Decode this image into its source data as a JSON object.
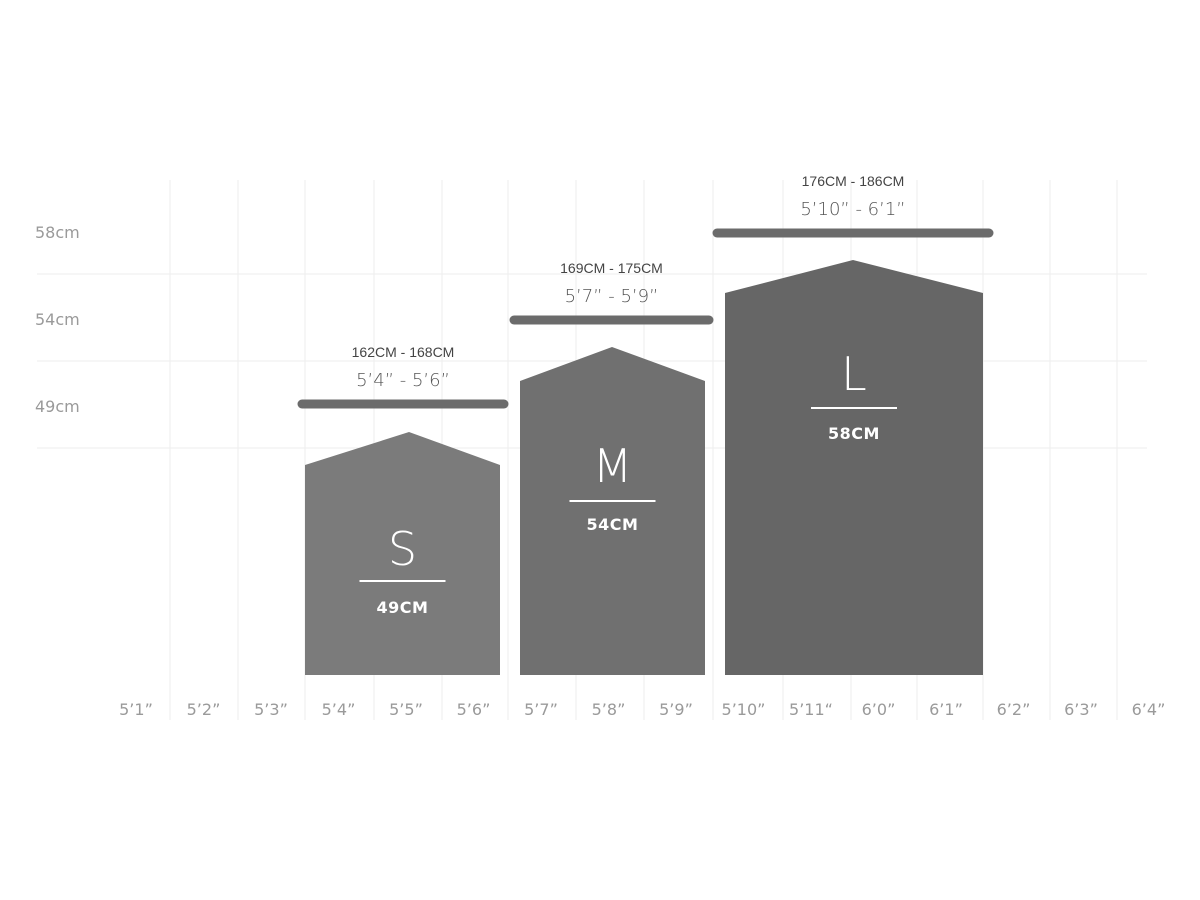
{
  "y_axis_labels": [
    "58cm",
    "54cm",
    "49cm"
  ],
  "x_axis_labels": [
    "5’1”",
    "5’2”",
    "5’3”",
    "5’4”",
    "5’5”",
    "5’6”",
    "5’7”",
    "5’8”",
    "5’9”",
    "5’10”",
    "5’11“",
    "6’0”",
    "6’1”",
    "6’2”",
    "6’3”",
    "6’4”"
  ],
  "sizes": [
    {
      "letter": "S",
      "frame": "49CM",
      "range_cm": "162CM - 168CM",
      "range_ft": "5’4” - 5’6”",
      "color": "#7b7b7b"
    },
    {
      "letter": "M",
      "frame": "54CM",
      "range_cm": "169CM - 175CM",
      "range_ft": "5’7” - 5’9”",
      "color": "#707070"
    },
    {
      "letter": "L",
      "frame": "58CM",
      "range_cm": "176CM - 186CM",
      "range_ft": "5’10” - 6’1”",
      "color": "#666666"
    }
  ],
  "colors": {
    "grid": "#eeeeee",
    "range_bar": "#6b6b6b",
    "axis_text": "#9a9a9a"
  }
}
